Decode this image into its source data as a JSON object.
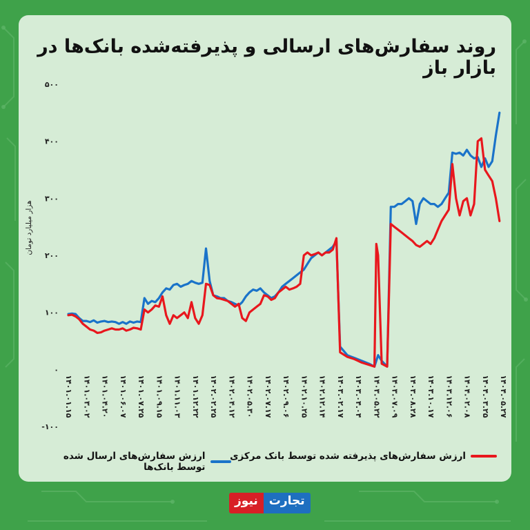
{
  "title": "روند سفارش‌های ارسالی و پذیرفته‌شده بانک‌ها در بازار باز",
  "legend": {
    "sent": "ارزش سفارش‌های ارسال شده توسط بانک‌ها",
    "accepted": "ارزش سفارش‌های پذیرفته شده توسط بانک مرکزی"
  },
  "brand": {
    "part1": "تجارت",
    "part2": "نیوز"
  },
  "colors": {
    "sent": "#1a73c9",
    "accepted": "#e8171d",
    "background": "#3fa24a",
    "panel": "#d6ecd6"
  },
  "chart_data": {
    "type": "line",
    "ylabel": "هزار میلیارد تومان",
    "ylim": [
      -100,
      500
    ],
    "yticks": [
      -100,
      0,
      100,
      200,
      300,
      400,
      500
    ],
    "ytick_labels": [
      "-۱۰۰",
      "۰",
      "۱۰۰",
      "۲۰۰",
      "۳۰۰",
      "۴۰۰",
      "۵۰۰"
    ],
    "x_tick_labels": [
      "۱۴۰۱.۰۱.۱۵",
      "۱۴۰۱.۰۳.۰۲",
      "۱۴۰۱.۰۴.۲۰",
      "۱۴۰۱.۰۶.۰۷",
      "۱۴۰۱.۰۷.۲۵",
      "۱۴۰۱.۰۹.۱۵",
      "۱۴۰۱.۱۱.۰۳",
      "۱۴۰۱.۱۲.۲۲",
      "۱۴۰۲.۰۲.۲۵",
      "۱۴۰۲.۰۴.۱۲",
      "۱۴۰۲.۰۵.۳۰",
      "۱۴۰۲.۰۷.۱۷",
      "۱۴۰۲.۰۹.۰۶",
      "۱۴۰۲.۱۰.۲۵",
      "۱۴۰۲.۱۲.۱۴",
      "۱۴۰۳.۰۲.۱۷",
      "۱۴۰۳.۰۴.۰۴",
      "۱۴۰۳.۰۵.۲۲",
      "۱۴۰۳.۰۷.۰۹",
      "۱۴۰۳.۰۸.۲۸",
      "۱۴۰۳.۱۰.۱۷",
      "۱۴۰۳.۱۲.۰۶",
      "۱۴۰۴.۰۲.۰۸",
      "۱۴۰۴.۰۳.۲۵",
      "۱۴۰۴.۰۵.۲۷"
    ],
    "series": [
      {
        "name": "ارزش سفارش‌های ارسال شده توسط بانک‌ها",
        "color": "#1a73c9",
        "values": [
          [
            0,
            97
          ],
          [
            0.2,
            98
          ],
          [
            0.4,
            97
          ],
          [
            0.6,
            90
          ],
          [
            0.8,
            85
          ],
          [
            1,
            85
          ],
          [
            1.2,
            83
          ],
          [
            1.4,
            86
          ],
          [
            1.6,
            82
          ],
          [
            1.8,
            84
          ],
          [
            2,
            85
          ],
          [
            2.2,
            83
          ],
          [
            2.4,
            84
          ],
          [
            2.6,
            83
          ],
          [
            2.8,
            80
          ],
          [
            3,
            83
          ],
          [
            3.2,
            80
          ],
          [
            3.4,
            84
          ],
          [
            3.6,
            82
          ],
          [
            3.8,
            84
          ],
          [
            4,
            83
          ],
          [
            4.2,
            125
          ],
          [
            4.4,
            115
          ],
          [
            4.6,
            120
          ],
          [
            4.8,
            118
          ],
          [
            5,
            125
          ],
          [
            5.2,
            135
          ],
          [
            5.4,
            142
          ],
          [
            5.6,
            140
          ],
          [
            5.8,
            148
          ],
          [
            6,
            150
          ],
          [
            6.2,
            145
          ],
          [
            6.4,
            148
          ],
          [
            6.6,
            150
          ],
          [
            6.8,
            155
          ],
          [
            7,
            152
          ],
          [
            7.2,
            150
          ],
          [
            7.4,
            152
          ],
          [
            7.6,
            212
          ],
          [
            7.8,
            155
          ],
          [
            8,
            130
          ],
          [
            8.2,
            128
          ],
          [
            8.4,
            125
          ],
          [
            8.6,
            125
          ],
          [
            8.8,
            120
          ],
          [
            9,
            118
          ],
          [
            9.2,
            115
          ],
          [
            9.4,
            112
          ],
          [
            9.6,
            118
          ],
          [
            9.8,
            128
          ],
          [
            10,
            135
          ],
          [
            10.2,
            140
          ],
          [
            10.4,
            138
          ],
          [
            10.6,
            142
          ],
          [
            10.8,
            135
          ],
          [
            11,
            130
          ],
          [
            11.2,
            125
          ],
          [
            11.4,
            128
          ],
          [
            11.6,
            135
          ],
          [
            11.8,
            145
          ],
          [
            12,
            150
          ],
          [
            12.2,
            155
          ],
          [
            12.4,
            160
          ],
          [
            12.6,
            165
          ],
          [
            12.8,
            170
          ],
          [
            13,
            175
          ],
          [
            13.2,
            185
          ],
          [
            13.4,
            195
          ],
          [
            13.6,
            200
          ],
          [
            13.8,
            205
          ],
          [
            14,
            200
          ],
          [
            14.2,
            205
          ],
          [
            14.4,
            210
          ],
          [
            14.6,
            215
          ],
          [
            14.8,
            225
          ],
          [
            15,
            40
          ],
          [
            15.4,
            25
          ],
          [
            15.8,
            20
          ],
          [
            16.2,
            15
          ],
          [
            16.6,
            10
          ],
          [
            16.9,
            5
          ],
          [
            17,
            15
          ],
          [
            17.1,
            25
          ],
          [
            17.3,
            15
          ],
          [
            17.6,
            5
          ],
          [
            17.8,
            285
          ],
          [
            18,
            285
          ],
          [
            18.2,
            290
          ],
          [
            18.4,
            290
          ],
          [
            18.6,
            295
          ],
          [
            18.8,
            300
          ],
          [
            19,
            295
          ],
          [
            19.2,
            255
          ],
          [
            19.4,
            290
          ],
          [
            19.6,
            300
          ],
          [
            19.8,
            295
          ],
          [
            20,
            290
          ],
          [
            20.2,
            290
          ],
          [
            20.4,
            285
          ],
          [
            20.6,
            290
          ],
          [
            20.8,
            300
          ],
          [
            21,
            310
          ],
          [
            21.2,
            380
          ],
          [
            21.4,
            378
          ],
          [
            21.6,
            380
          ],
          [
            21.8,
            375
          ],
          [
            22,
            385
          ],
          [
            22.2,
            375
          ],
          [
            22.4,
            370
          ],
          [
            22.6,
            372
          ],
          [
            22.8,
            355
          ],
          [
            23,
            370
          ],
          [
            23.2,
            355
          ],
          [
            23.4,
            365
          ],
          [
            23.6,
            410
          ],
          [
            23.8,
            450
          ]
        ]
      },
      {
        "name": "ارزش سفارش‌های پذیرفته شده توسط بانک مرکزی",
        "color": "#e8171d",
        "values": [
          [
            0,
            95
          ],
          [
            0.2,
            96
          ],
          [
            0.4,
            93
          ],
          [
            0.6,
            88
          ],
          [
            0.8,
            80
          ],
          [
            1,
            75
          ],
          [
            1.2,
            70
          ],
          [
            1.4,
            68
          ],
          [
            1.6,
            64
          ],
          [
            1.8,
            65
          ],
          [
            2,
            68
          ],
          [
            2.2,
            70
          ],
          [
            2.4,
            72
          ],
          [
            2.6,
            70
          ],
          [
            2.8,
            70
          ],
          [
            3,
            72
          ],
          [
            3.2,
            68
          ],
          [
            3.4,
            70
          ],
          [
            3.6,
            73
          ],
          [
            3.8,
            72
          ],
          [
            4,
            70
          ],
          [
            4.2,
            105
          ],
          [
            4.4,
            100
          ],
          [
            4.6,
            105
          ],
          [
            4.8,
            112
          ],
          [
            5,
            110
          ],
          [
            5.2,
            128
          ],
          [
            5.4,
            95
          ],
          [
            5.6,
            80
          ],
          [
            5.8,
            95
          ],
          [
            6,
            90
          ],
          [
            6.2,
            95
          ],
          [
            6.4,
            100
          ],
          [
            6.6,
            90
          ],
          [
            6.8,
            118
          ],
          [
            7,
            90
          ],
          [
            7.2,
            80
          ],
          [
            7.4,
            95
          ],
          [
            7.6,
            150
          ],
          [
            7.8,
            148
          ],
          [
            8,
            130
          ],
          [
            8.2,
            125
          ],
          [
            8.4,
            124
          ],
          [
            8.6,
            122
          ],
          [
            8.8,
            120
          ],
          [
            9,
            115
          ],
          [
            9.2,
            110
          ],
          [
            9.4,
            115
          ],
          [
            9.6,
            90
          ],
          [
            9.8,
            85
          ],
          [
            10,
            100
          ],
          [
            10.2,
            105
          ],
          [
            10.4,
            110
          ],
          [
            10.6,
            115
          ],
          [
            10.8,
            130
          ],
          [
            11,
            128
          ],
          [
            11.2,
            122
          ],
          [
            11.4,
            125
          ],
          [
            11.6,
            135
          ],
          [
            11.8,
            140
          ],
          [
            12,
            145
          ],
          [
            12.2,
            140
          ],
          [
            12.4,
            142
          ],
          [
            12.6,
            145
          ],
          [
            12.8,
            150
          ],
          [
            13,
            200
          ],
          [
            13.2,
            205
          ],
          [
            13.4,
            200
          ],
          [
            13.6,
            202
          ],
          [
            13.8,
            205
          ],
          [
            14,
            200
          ],
          [
            14.2,
            205
          ],
          [
            14.4,
            205
          ],
          [
            14.6,
            210
          ],
          [
            14.8,
            230
          ],
          [
            15,
            30
          ],
          [
            15.4,
            22
          ],
          [
            15.8,
            18
          ],
          [
            16.2,
            12
          ],
          [
            16.6,
            8
          ],
          [
            16.9,
            5
          ],
          [
            17,
            220
          ],
          [
            17.1,
            200
          ],
          [
            17.3,
            10
          ],
          [
            17.6,
            5
          ],
          [
            17.8,
            255
          ],
          [
            18,
            250
          ],
          [
            18.2,
            245
          ],
          [
            18.4,
            240
          ],
          [
            18.6,
            235
          ],
          [
            18.8,
            230
          ],
          [
            19,
            225
          ],
          [
            19.2,
            218
          ],
          [
            19.4,
            215
          ],
          [
            19.6,
            220
          ],
          [
            19.8,
            225
          ],
          [
            20,
            220
          ],
          [
            20.2,
            230
          ],
          [
            20.4,
            245
          ],
          [
            20.6,
            260
          ],
          [
            20.8,
            270
          ],
          [
            21,
            280
          ],
          [
            21.2,
            360
          ],
          [
            21.4,
            300
          ],
          [
            21.6,
            270
          ],
          [
            21.8,
            295
          ],
          [
            22,
            300
          ],
          [
            22.2,
            270
          ],
          [
            22.4,
            290
          ],
          [
            22.6,
            400
          ],
          [
            22.8,
            405
          ],
          [
            23,
            350
          ],
          [
            23.2,
            340
          ],
          [
            23.4,
            330
          ],
          [
            23.6,
            300
          ],
          [
            23.8,
            260
          ]
        ]
      }
    ]
  }
}
